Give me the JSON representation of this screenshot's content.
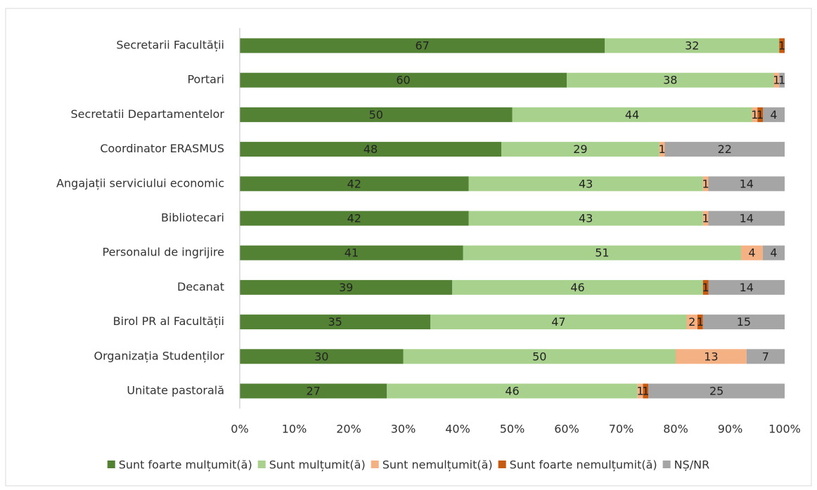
{
  "chart_data": {
    "type": "stacked-barh",
    "categories": [
      "Secretarii Facultății",
      "Portari",
      "Secretatii Departamentelor",
      "Coordinator ERASMUS",
      "Angajații serviciului economic",
      "Bibliotecari",
      "Personalul de ingrijire",
      "Decanat",
      "Birol PR al Facultății",
      "Organizația Studenților",
      "Unitate pastorală"
    ],
    "series": [
      {
        "name": "Sunt foarte mulțumit(ă)",
        "color": "#548235",
        "values": [
          67,
          60,
          50,
          48,
          42,
          42,
          41,
          39,
          35,
          30,
          27
        ]
      },
      {
        "name": "Sunt mulțumit(ă)",
        "color": "#a9d18e",
        "values": [
          32,
          38,
          44,
          29,
          43,
          43,
          51,
          46,
          47,
          50,
          46
        ]
      },
      {
        "name": "Sunt nemulțumit(ă)",
        "color": "#f4b183",
        "values": [
          null,
          1,
          1,
          1,
          1,
          1,
          4,
          null,
          2,
          13,
          1
        ]
      },
      {
        "name": "Sunt foarte nemulțumit(ă)",
        "color": "#c55a11",
        "values": [
          1,
          null,
          1,
          null,
          null,
          null,
          null,
          1,
          1,
          null,
          1
        ]
      },
      {
        "name": "NȘ/NR",
        "color": "#a5a5a5",
        "values": [
          null,
          1,
          4,
          22,
          14,
          14,
          4,
          14,
          15,
          7,
          25
        ]
      }
    ],
    "xlim": [
      0,
      100
    ],
    "xticks": [
      {
        "value": 0,
        "label": "0%"
      },
      {
        "value": 10,
        "label": "10%"
      },
      {
        "value": 20,
        "label": "20%"
      },
      {
        "value": 30,
        "label": "30%"
      },
      {
        "value": 40,
        "label": "40%"
      },
      {
        "value": 50,
        "label": "50%"
      },
      {
        "value": 60,
        "label": "60%"
      },
      {
        "value": 70,
        "label": "70%"
      },
      {
        "value": 80,
        "label": "80%"
      },
      {
        "value": 90,
        "label": "90%"
      },
      {
        "value": 100,
        "label": "100%"
      }
    ],
    "grid": false,
    "legend": "bottom"
  }
}
